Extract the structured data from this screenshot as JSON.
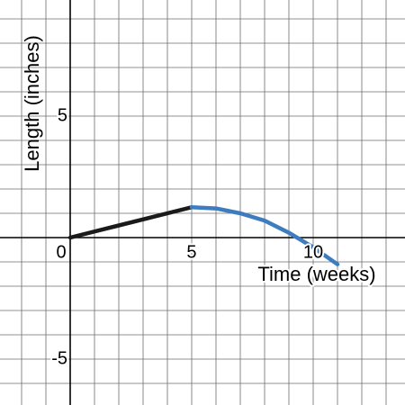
{
  "chart_data": {
    "type": "line",
    "xlabel": "Time (weeks)",
    "ylabel": "Length (inches)",
    "xlim": [
      -2.889,
      13.778
    ],
    "ylim": [
      -6.889,
      9.778
    ],
    "xticks": [
      0,
      5,
      10
    ],
    "yticks": [
      -5,
      5
    ],
    "xgrid": [
      -2,
      -1,
      0,
      1,
      2,
      3,
      4,
      5,
      6,
      7,
      8,
      9,
      10,
      11,
      12,
      13
    ],
    "ygrid": [
      -6,
      -5,
      -4,
      -3,
      -2,
      -1,
      0,
      1,
      2,
      3,
      4,
      5,
      6,
      7,
      8,
      9
    ],
    "series": [
      {
        "color": "#1a1a1a",
        "x": [
          0,
          5
        ],
        "values": [
          0,
          1.25
        ]
      },
      {
        "color": "#3d7cbf",
        "x": [
          5,
          6,
          7,
          8,
          9,
          10,
          11
        ],
        "values": [
          1.25,
          1.2,
          1.0,
          0.7,
          0.2,
          -0.4,
          -1.1
        ]
      }
    ]
  }
}
